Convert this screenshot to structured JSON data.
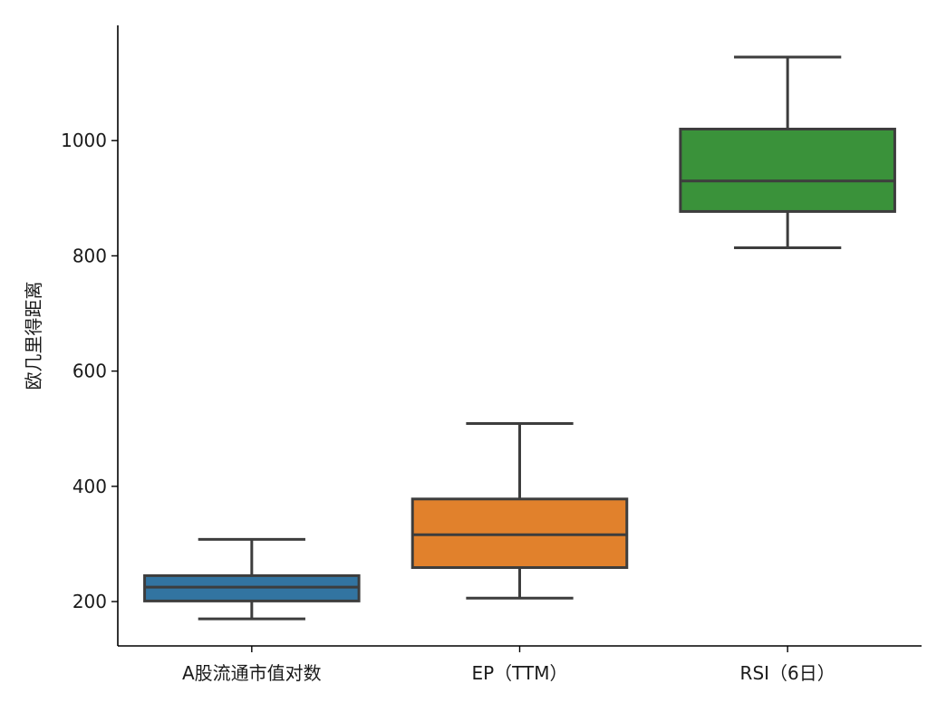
{
  "chart_data": {
    "type": "box",
    "title": "",
    "xlabel": "",
    "ylabel": "欧几里得距离",
    "ylim": [
      123,
      1200
    ],
    "yticks": [
      200,
      400,
      600,
      800,
      1000
    ],
    "grid": false,
    "categories": [
      "A股流通市值对数",
      "EP（TTM）",
      "RSI（6日）"
    ],
    "boxes": [
      {
        "category": "A股流通市值对数",
        "whisker_low": 170,
        "q1": 201,
        "median": 225,
        "q3": 245,
        "whisker_high": 308,
        "color": "#3274a1"
      },
      {
        "category": "EP（TTM）",
        "whisker_low": 206,
        "q1": 259,
        "median": 316,
        "q3": 378,
        "whisker_high": 509,
        "color": "#e1812c"
      },
      {
        "category": "RSI（6日）",
        "whisker_low": 814,
        "q1": 877,
        "median": 930,
        "q3": 1020,
        "whisker_high": 1145,
        "color": "#3a923a"
      }
    ],
    "line_color": "#3d3d3d"
  }
}
